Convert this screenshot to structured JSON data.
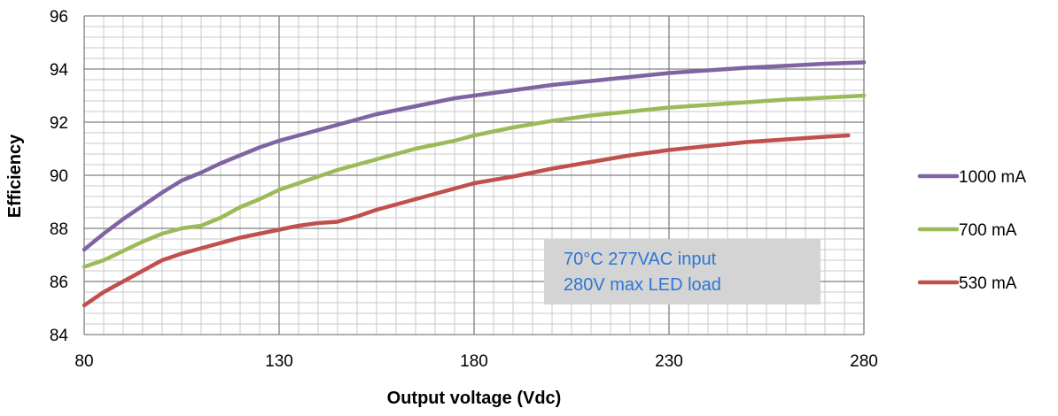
{
  "chart_data": {
    "type": "line",
    "title": "",
    "xlabel": "Output voltage (Vdc)",
    "ylabel": "Efficiency",
    "xlim": [
      80,
      280
    ],
    "ylim": [
      84,
      96
    ],
    "x_ticks": [
      80,
      130,
      180,
      230,
      280
    ],
    "y_ticks": [
      84,
      86,
      88,
      90,
      92,
      94,
      96
    ],
    "x_minor_step": 5,
    "y_minor_step": 0.4,
    "grid": true,
    "legend_position": "right",
    "annotation": {
      "lines": [
        "70°C 277VAC input",
        "280V max LED load"
      ],
      "text_color": "#2e75d6",
      "background": "#d4d4d4"
    },
    "series": [
      {
        "name": "1000 mA",
        "color": "#8064a2",
        "x": [
          80,
          85,
          90,
          95,
          100,
          105,
          110,
          115,
          120,
          125,
          130,
          135,
          140,
          145,
          150,
          155,
          160,
          165,
          170,
          175,
          180,
          190,
          200,
          210,
          220,
          230,
          240,
          250,
          260,
          270,
          280
        ],
        "y": [
          87.2,
          87.8,
          88.35,
          88.85,
          89.35,
          89.8,
          90.1,
          90.45,
          90.75,
          91.05,
          91.3,
          91.5,
          91.7,
          91.9,
          92.1,
          92.3,
          92.45,
          92.6,
          92.75,
          92.9,
          93.0,
          93.2,
          93.4,
          93.55,
          93.7,
          93.85,
          93.95,
          94.05,
          94.12,
          94.2,
          94.25
        ]
      },
      {
        "name": "700 mA",
        "color": "#9bbb59",
        "x": [
          80,
          85,
          90,
          95,
          100,
          105,
          110,
          115,
          120,
          125,
          130,
          135,
          140,
          145,
          150,
          155,
          160,
          165,
          170,
          175,
          180,
          190,
          200,
          210,
          220,
          230,
          240,
          250,
          260,
          270,
          280
        ],
        "y": [
          86.55,
          86.8,
          87.15,
          87.5,
          87.8,
          88.0,
          88.1,
          88.4,
          88.8,
          89.1,
          89.45,
          89.7,
          89.95,
          90.2,
          90.4,
          90.6,
          90.8,
          91.0,
          91.15,
          91.3,
          91.5,
          91.8,
          92.05,
          92.25,
          92.4,
          92.55,
          92.65,
          92.75,
          92.85,
          92.92,
          93.0
        ]
      },
      {
        "name": "530 mA",
        "color": "#c0504d",
        "x": [
          80,
          85,
          90,
          95,
          100,
          105,
          110,
          115,
          120,
          125,
          130,
          135,
          140,
          145,
          150,
          155,
          160,
          165,
          170,
          175,
          180,
          190,
          200,
          210,
          220,
          230,
          240,
          250,
          260,
          270,
          276
        ],
        "y": [
          85.1,
          85.6,
          86.0,
          86.4,
          86.8,
          87.05,
          87.25,
          87.45,
          87.65,
          87.8,
          87.95,
          88.1,
          88.2,
          88.25,
          88.45,
          88.7,
          88.9,
          89.1,
          89.3,
          89.5,
          89.7,
          89.95,
          90.25,
          90.5,
          90.75,
          90.95,
          91.1,
          91.25,
          91.35,
          91.45,
          91.5
        ]
      }
    ]
  }
}
